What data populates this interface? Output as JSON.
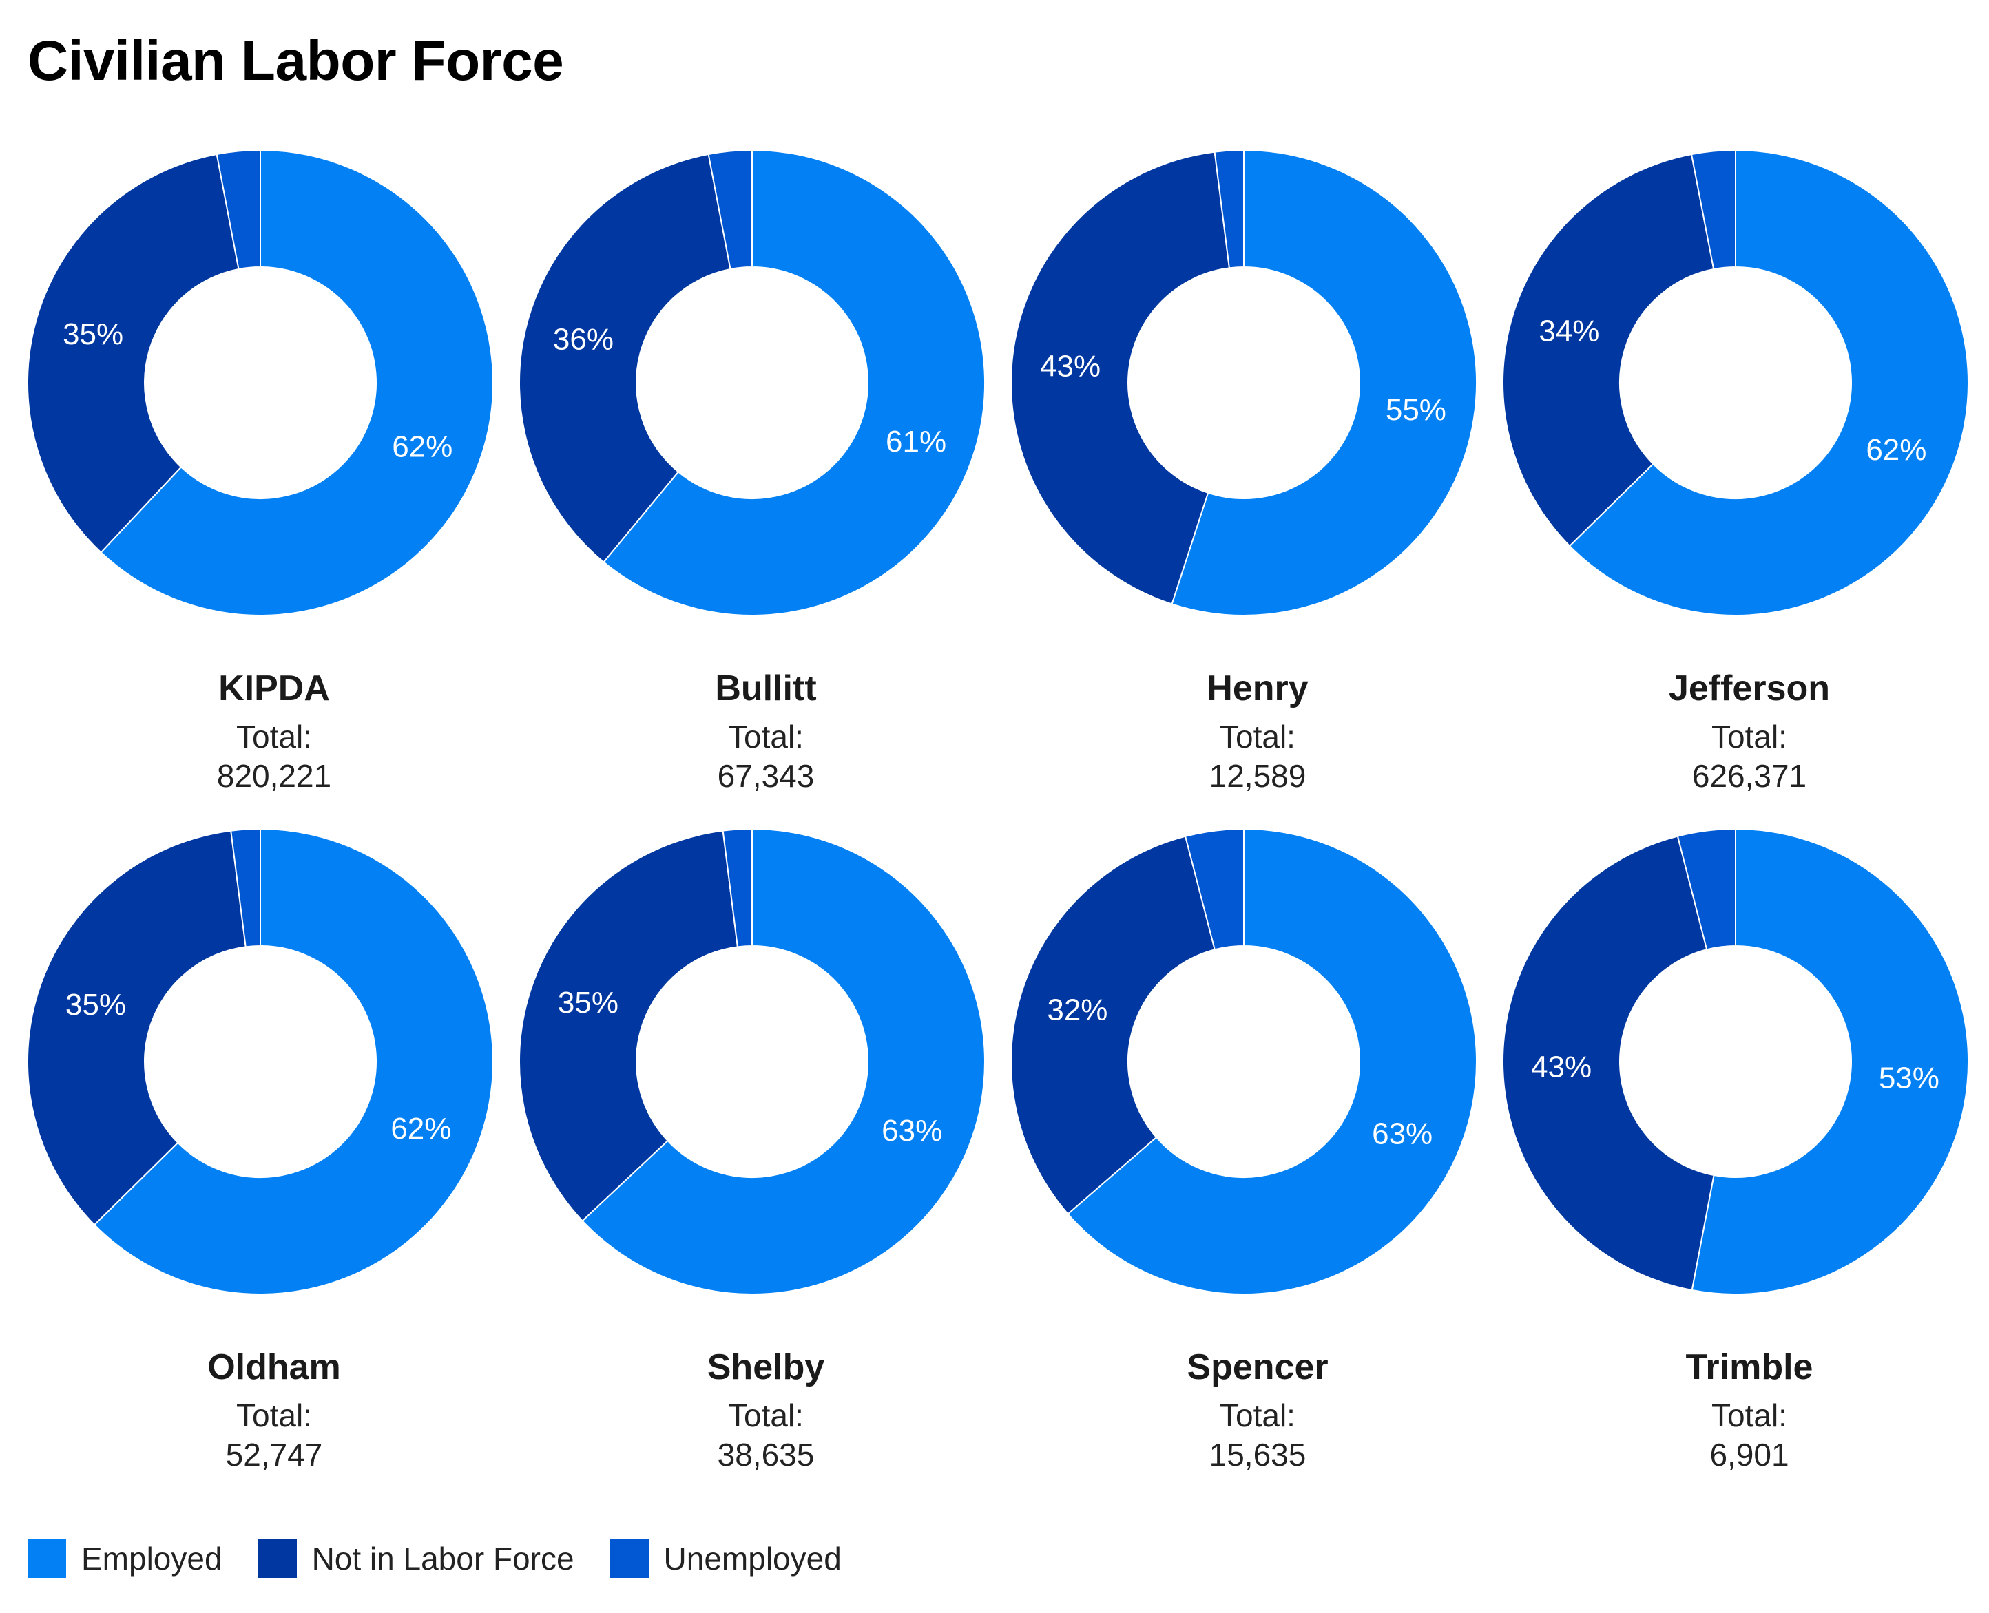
{
  "title": "Civilian Labor Force",
  "colors": {
    "employed": "#0381f4",
    "not_in_labor_force": "#0037a0",
    "unemployed": "#0258d2"
  },
  "legend": [
    {
      "label": "Employed",
      "color": "#0381f4"
    },
    {
      "label": "Not in Labor Force",
      "color": "#0037a0"
    },
    {
      "label": "Unemployed",
      "color": "#0258d2"
    }
  ],
  "total_label": "Total:",
  "chart_data": [
    {
      "type": "pie",
      "name": "KIPDA",
      "total": "820,221",
      "categories": [
        "Employed",
        "Not in Labor Force",
        "Unemployed"
      ],
      "values": [
        62,
        35,
        3
      ],
      "labels": [
        "62%",
        "35%",
        ""
      ]
    },
    {
      "type": "pie",
      "name": "Bullitt",
      "total": "67,343",
      "categories": [
        "Employed",
        "Not in Labor Force",
        "Unemployed"
      ],
      "values": [
        61,
        36,
        3
      ],
      "labels": [
        "61%",
        "36%",
        ""
      ]
    },
    {
      "type": "pie",
      "name": "Henry",
      "total": "12,589",
      "categories": [
        "Employed",
        "Not in Labor Force",
        "Unemployed"
      ],
      "values": [
        55,
        43,
        2
      ],
      "labels": [
        "55%",
        "43%",
        ""
      ]
    },
    {
      "type": "pie",
      "name": "Jefferson",
      "total": "626,371",
      "categories": [
        "Employed",
        "Not in Labor Force",
        "Unemployed"
      ],
      "values": [
        62,
        34,
        3
      ],
      "labels": [
        "62%",
        "34%",
        ""
      ]
    },
    {
      "type": "pie",
      "name": "Oldham",
      "total": "52,747",
      "categories": [
        "Employed",
        "Not in Labor Force",
        "Unemployed"
      ],
      "values": [
        62,
        35,
        2
      ],
      "labels": [
        "62%",
        "35%",
        ""
      ]
    },
    {
      "type": "pie",
      "name": "Shelby",
      "total": "38,635",
      "categories": [
        "Employed",
        "Not in Labor Force",
        "Unemployed"
      ],
      "values": [
        63,
        35,
        2
      ],
      "labels": [
        "63%",
        "35%",
        ""
      ]
    },
    {
      "type": "pie",
      "name": "Spencer",
      "total": "15,635",
      "categories": [
        "Employed",
        "Not in Labor Force",
        "Unemployed"
      ],
      "values": [
        63,
        32,
        4
      ],
      "labels": [
        "63%",
        "32%",
        ""
      ]
    },
    {
      "type": "pie",
      "name": "Trimble",
      "total": "6,901",
      "categories": [
        "Employed",
        "Not in Labor Force",
        "Unemployed"
      ],
      "values": [
        53,
        43,
        4
      ],
      "labels": [
        "53%",
        "43%",
        ""
      ]
    }
  ]
}
